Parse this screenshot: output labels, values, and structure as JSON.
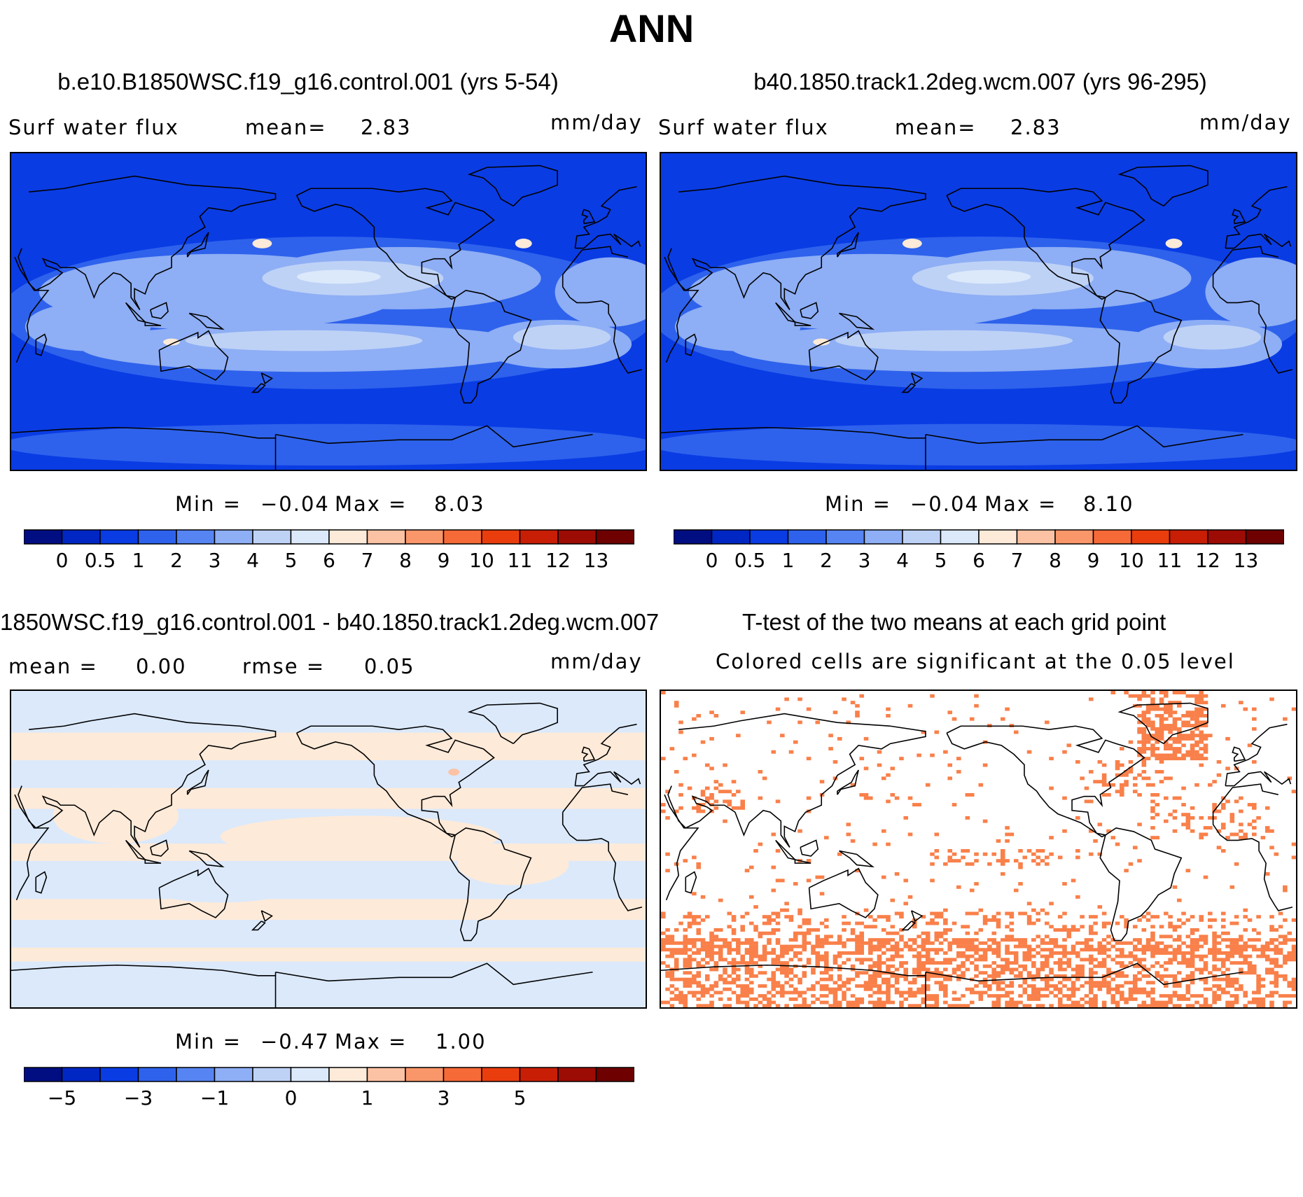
{
  "title": "ANN",
  "panels": {
    "top_left": {
      "title": "b.e10.B1850WSC.f19_g16.control.001 (yrs 5-54)",
      "variable": "Surf  water flux",
      "mean_label": "mean=",
      "mean_value": "2.83",
      "units": "mm/day",
      "min_label": "Min =",
      "min_value": "−0.04",
      "max_label": "Max =",
      "max_value": "8.03"
    },
    "top_right": {
      "title": "b40.1850.track1.2deg.wcm.007 (yrs 96-295)",
      "variable": "Surf  water flux",
      "mean_label": "mean=",
      "mean_value": "2.83",
      "units": "mm/day",
      "min_label": "Min =",
      "min_value": "−0.04",
      "max_label": "Max =",
      "max_value": "8.10"
    },
    "bottom_left": {
      "title": "1850WSC.f19_g16.control.001 - b40.1850.track1.2deg.wcm.007",
      "mean_label": "mean =",
      "mean_value": "0.00",
      "rmse_label": "rmse =",
      "rmse_value": "0.05",
      "units": "mm/day",
      "min_label": "Min =",
      "min_value": "−0.47",
      "max_label": "Max =",
      "max_value": "1.00"
    },
    "bottom_right": {
      "title": "T-test of the two means at each grid point",
      "subtitle": "Colored cells are significant at the 0.05 level"
    }
  },
  "colorbars": {
    "colors": [
      "#000e82",
      "#0027c4",
      "#0a3ce4",
      "#2e62ec",
      "#5684f2",
      "#8eaef5",
      "#bed2f6",
      "#dbe9fb",
      "#feead8",
      "#fcc2a4",
      "#f9966a",
      "#f66a37",
      "#ea3d0e",
      "#c81e06",
      "#9d0c04",
      "#6e0000"
    ],
    "abs_labels": [
      "0",
      "0.5",
      "1",
      "2",
      "3",
      "4",
      "5",
      "6",
      "7",
      "8",
      "9",
      "10",
      "11",
      "12",
      "13"
    ],
    "diff_labels": [
      "−5",
      "−3",
      "−1",
      "0",
      "1",
      "3",
      "5"
    ]
  },
  "map_colors": {
    "ocean_deep": "#0a3ce4",
    "ocean_mid": "#2e62ec",
    "light_band": "#8eaef5",
    "pale_band": "#bed2f6",
    "palest": "#dbe9fb",
    "peach": "#feead8",
    "significant": "#f9804a",
    "coast": "#000000"
  }
}
